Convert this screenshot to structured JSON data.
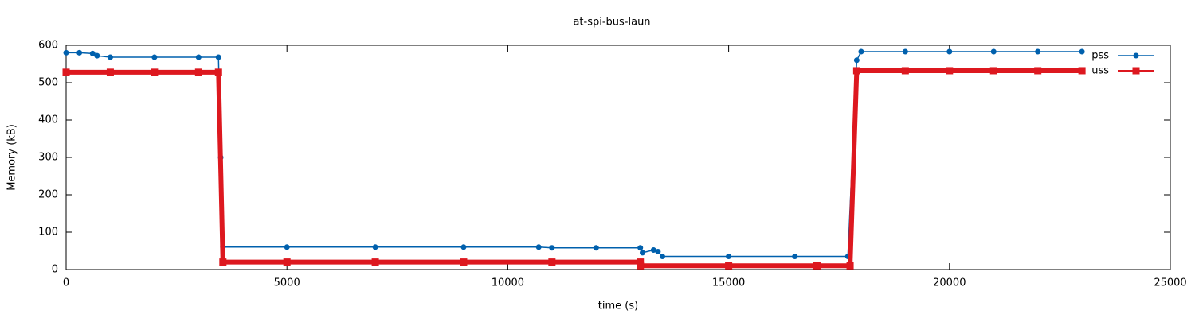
{
  "chart_data": {
    "type": "line",
    "title": "at-spi-bus-laun",
    "xlabel": "time (s)",
    "ylabel": "Memory (kB)",
    "xlim": [
      0,
      25000
    ],
    "xticks": [
      0,
      5000,
      10000,
      15000,
      20000,
      25000
    ],
    "ylim": [
      0,
      600
    ],
    "yticks": [
      0,
      100,
      200,
      300,
      400,
      500,
      600
    ],
    "legend": "top-right",
    "series": [
      {
        "name": "pss",
        "color": "#0060ad",
        "x": [
          0,
          300,
          600,
          700,
          1000,
          2000,
          3000,
          3450,
          3500,
          3550,
          5000,
          7000,
          9000,
          10700,
          11000,
          12000,
          13000,
          13050,
          13300,
          13400,
          13500,
          15000,
          16500,
          17700,
          17900,
          18000,
          19000,
          20000,
          21000,
          22000,
          23000
        ],
        "values": [
          580,
          580,
          578,
          572,
          568,
          568,
          568,
          568,
          300,
          60,
          60,
          60,
          60,
          60,
          58,
          58,
          58,
          45,
          52,
          48,
          35,
          35,
          35,
          35,
          560,
          583,
          583,
          583,
          583,
          583,
          583
        ]
      },
      {
        "name": "uss",
        "color": "#dd181f",
        "x": [
          0,
          1000,
          2000,
          3000,
          3450,
          3550,
          5000,
          7000,
          9000,
          11000,
          13000,
          13000,
          15000,
          17000,
          17750,
          17900,
          19000,
          20000,
          21000,
          22000,
          23000
        ],
        "values": [
          528,
          528,
          528,
          528,
          528,
          20,
          20,
          20,
          20,
          20,
          20,
          10,
          10,
          10,
          10,
          532,
          532,
          532,
          532,
          532,
          532
        ]
      }
    ]
  }
}
